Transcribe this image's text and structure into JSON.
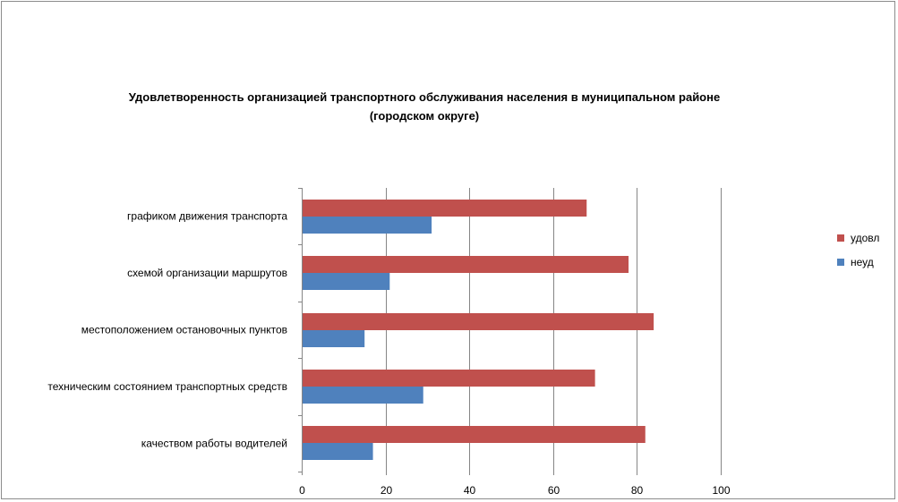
{
  "chart_data": {
    "type": "bar",
    "orientation": "horizontal",
    "title": "Удовлетворенность организацией транспортного обслуживания населения в муниципальном районе (городском округе)",
    "title_lines": [
      "Удовлетворенность организацией транспортного обслуживания населения в муниципальном районе",
      "(городском округе)"
    ],
    "categories": [
      "графиком движения транспорта",
      "схемой организации маршрутов",
      "местоположением остановочных пунктов",
      "техническим состоянием транспортных средств",
      "качеством работы водителей"
    ],
    "series": [
      {
        "name": "удовл",
        "color": "#c0504d",
        "values": [
          68,
          78,
          84,
          70,
          82
        ]
      },
      {
        "name": "неуд",
        "color": "#4f81bd",
        "values": [
          31,
          21,
          15,
          29,
          17
        ]
      }
    ],
    "xlim": [
      0,
      100
    ],
    "xticks": [
      0,
      20,
      40,
      60,
      80,
      100
    ],
    "grid": true,
    "legend_position": "right"
  }
}
